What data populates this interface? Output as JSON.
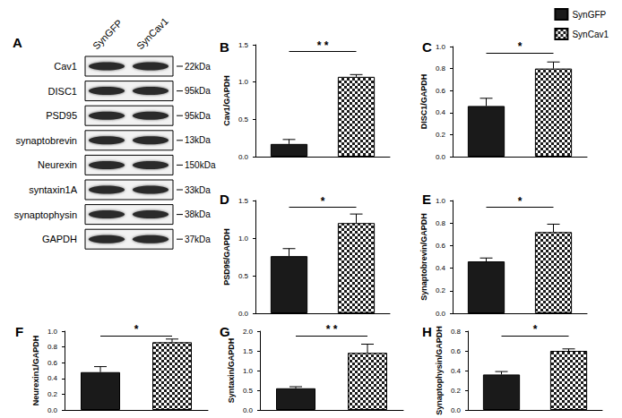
{
  "blot": {
    "panel": "A",
    "lanes": [
      "SynGFP",
      "SynCav1"
    ],
    "rows": [
      {
        "protein": "Cav1",
        "size": "22kDa"
      },
      {
        "protein": "DISC1",
        "size": "95kDa"
      },
      {
        "protein": "PSD95",
        "size": "95kDa"
      },
      {
        "protein": "synaptobrevin",
        "size": "13kDa"
      },
      {
        "protein": "Neurexin",
        "size": "150kDa"
      },
      {
        "protein": "syntaxin1A",
        "size": "33kDa"
      },
      {
        "protein": "synaptophysin",
        "size": "38kDa"
      },
      {
        "protein": "GAPDH",
        "size": "37kDa"
      }
    ]
  },
  "chart_data": [
    {
      "type": "bar",
      "title": "B",
      "y_label": "Cav1/GAPDH",
      "categories": [
        null,
        null
      ],
      "tick_labels": "y",
      "grid": false,
      "annotation": "* *",
      "ylim": [
        0,
        1.5
      ],
      "yticks": [
        {
          "value": 0,
          "label": "0.0"
        },
        {
          "value": 0.5,
          "label": "0.5"
        },
        {
          "value": 1,
          "label": "1.0"
        },
        {
          "value": 1.5,
          "label": "1.5"
        }
      ],
      "series": [
        {
          "name": "SynGFP",
          "color": "#1a1a1a",
          "values": [
            0.17,
            null
          ],
          "errors": [
            0.06,
            null
          ]
        },
        {
          "name": "SynCav1",
          "color": "#ffffff",
          "values": [
            null,
            1.07
          ],
          "errors": [
            null,
            0.03
          ]
        }
      ]
    },
    {
      "type": "bar",
      "title": "C",
      "y_label": "DISC1/GAPDH",
      "categories": [
        null,
        null
      ],
      "tick_labels": "y",
      "grid": false,
      "annotation": "*",
      "ylim": [
        0,
        1
      ],
      "yticks": [
        {
          "value": 0,
          "label": "0.0"
        },
        {
          "value": 0.2,
          "label": "0.2"
        },
        {
          "value": 0.4,
          "label": "0.4"
        },
        {
          "value": 0.6,
          "label": "0.6"
        },
        {
          "value": 0.8,
          "label": "0.8"
        },
        {
          "value": 1,
          "label": "1.0"
        }
      ],
      "series": [
        {
          "name": "SynGFP",
          "color": "#1a1a1a",
          "values": [
            0.46,
            null
          ],
          "errors": [
            0.07,
            null
          ]
        },
        {
          "name": "SynCav1",
          "color": "#ffffff",
          "values": [
            null,
            0.8
          ],
          "errors": [
            null,
            0.06
          ]
        }
      ]
    },
    {
      "type": "bar",
      "title": "D",
      "y_label": "PSD95/GAPDH",
      "categories": [
        null,
        null
      ],
      "tick_labels": "y",
      "grid": false,
      "annotation": "*",
      "ylim": [
        0,
        1.5
      ],
      "yticks": [
        {
          "value": 0,
          "label": "0.0"
        },
        {
          "value": 0.5,
          "label": "0.5"
        },
        {
          "value": 1,
          "label": "1.0"
        },
        {
          "value": 1.5,
          "label": "1.5"
        }
      ],
      "series": [
        {
          "name": "SynGFP",
          "color": "#1a1a1a",
          "values": [
            0.76,
            null
          ],
          "errors": [
            0.1,
            null
          ]
        },
        {
          "name": "SynCav1",
          "color": "#ffffff",
          "values": [
            null,
            1.2
          ],
          "errors": [
            null,
            0.12
          ]
        }
      ]
    },
    {
      "type": "bar",
      "title": "E",
      "y_label": "Synaptobrevin/GAPDH",
      "categories": [
        null,
        null
      ],
      "tick_labels": "y",
      "grid": false,
      "annotation": "*",
      "ylim": [
        0,
        1
      ],
      "yticks": [
        {
          "value": 0,
          "label": "0.0"
        },
        {
          "value": 0.2,
          "label": "0.2"
        },
        {
          "value": 0.4,
          "label": "0.4"
        },
        {
          "value": 0.6,
          "label": "0.6"
        },
        {
          "value": 0.8,
          "label": "0.8"
        },
        {
          "value": 1,
          "label": "1.0"
        }
      ],
      "series": [
        {
          "name": "SynGFP",
          "color": "#1a1a1a",
          "values": [
            0.46,
            null
          ],
          "errors": [
            0.03,
            null
          ]
        },
        {
          "name": "SynCav1",
          "color": "#ffffff",
          "values": [
            null,
            0.72
          ],
          "errors": [
            null,
            0.07
          ]
        }
      ]
    },
    {
      "type": "bar",
      "title": "F",
      "y_label": "Neurexin1/GAPDH",
      "categories": [
        null,
        null
      ],
      "tick_labels": "y",
      "grid": false,
      "annotation": "*",
      "ylim": [
        0,
        1
      ],
      "yticks": [
        {
          "value": 0,
          "label": "0.0"
        },
        {
          "value": 0.2,
          "label": "0.2"
        },
        {
          "value": 0.4,
          "label": "0.4"
        },
        {
          "value": 0.6,
          "label": "0.6"
        },
        {
          "value": 0.8,
          "label": "0.8"
        },
        {
          "value": 1,
          "label": "1.0"
        }
      ],
      "series": [
        {
          "name": "SynGFP",
          "color": "#1a1a1a",
          "values": [
            0.48,
            null
          ],
          "errors": [
            0.07,
            null
          ]
        },
        {
          "name": "SynCav1",
          "color": "#ffffff",
          "values": [
            null,
            0.86
          ],
          "errors": [
            null,
            0.04
          ]
        }
      ]
    },
    {
      "type": "bar",
      "title": "G",
      "y_label": "Syntaxin/GAPDH",
      "categories": [
        null,
        null
      ],
      "tick_labels": "y",
      "grid": false,
      "annotation": "* *",
      "ylim": [
        0,
        2
      ],
      "yticks": [
        {
          "value": 0,
          "label": "0.0"
        },
        {
          "value": 0.5,
          "label": "0.5"
        },
        {
          "value": 1,
          "label": "1.0"
        },
        {
          "value": 1.5,
          "label": "1.5"
        },
        {
          "value": 2,
          "label": "2.0"
        }
      ],
      "series": [
        {
          "name": "SynGFP",
          "color": "#1a1a1a",
          "values": [
            0.55,
            null
          ],
          "errors": [
            0.04,
            null
          ]
        },
        {
          "name": "SynCav1",
          "color": "#ffffff",
          "values": [
            null,
            1.45
          ],
          "errors": [
            null,
            0.22
          ]
        }
      ]
    },
    {
      "type": "bar",
      "title": "H",
      "y_label": "Synaptophysin/GAPDH",
      "categories": [
        null,
        null
      ],
      "tick_labels": "y",
      "grid": false,
      "annotation": "*",
      "ylim": [
        0,
        0.8
      ],
      "yticks": [
        {
          "value": 0,
          "label": "0.0"
        },
        {
          "value": 0.2,
          "label": "0.2"
        },
        {
          "value": 0.4,
          "label": "0.4"
        },
        {
          "value": 0.6,
          "label": "0.6"
        },
        {
          "value": 0.8,
          "label": "0.8"
        }
      ],
      "series": [
        {
          "name": "SynGFP",
          "color": "#1a1a1a",
          "values": [
            0.36,
            null
          ],
          "errors": [
            0.03,
            null
          ]
        },
        {
          "name": "SynCav1",
          "color": "#ffffff",
          "values": [
            null,
            0.6
          ],
          "errors": [
            null,
            0.02
          ]
        }
      ]
    }
  ]
}
